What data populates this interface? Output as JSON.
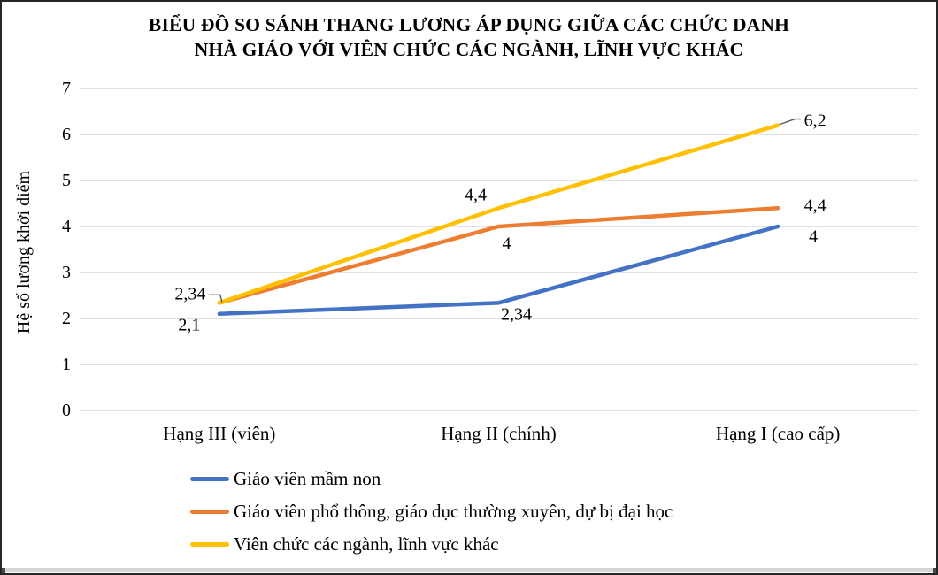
{
  "title": {
    "line1": "BIỂU ĐỒ SO SÁNH THANG LƯƠNG ÁP DỤNG GIỮA CÁC CHỨC DANH",
    "line2": "NHÀ GIÁO VỚI VIÊN CHỨC CÁC NGÀNH, LĨNH VỰC KHÁC"
  },
  "chart_data": {
    "type": "line",
    "title": "BIỂU ĐỒ SO SÁNH THANG LƯƠNG ÁP DỤNG GIỮA CÁC CHỨC DANH NHÀ GIÁO VỚI VIÊN CHỨC CÁC NGÀNH, LĨNH VỰC KHÁC",
    "ylabel": "Hệ số lương khởi điểm",
    "xlabel": "",
    "ylim": [
      0,
      7
    ],
    "yticks": [
      0,
      1,
      2,
      3,
      4,
      5,
      6,
      7
    ],
    "grid": true,
    "legend_position": "bottom-left",
    "categories": [
      "Hạng III (viên)",
      "Hạng II (chính)",
      "Hạng I (cao cấp)"
    ],
    "series": [
      {
        "name": "Giáo viên mầm non",
        "color": "#4472C4",
        "values": [
          2.1,
          2.34,
          4
        ]
      },
      {
        "name": "Giáo viên phổ thông, giáo dục thường xuyên, dự bị đại học",
        "color": "#ED7D31",
        "values": [
          2.34,
          4,
          4.4
        ]
      },
      {
        "name": "Viên chức các ngành, lĩnh vực khác",
        "color": "#FFC000",
        "values": [
          2.34,
          4.4,
          6.2
        ]
      }
    ],
    "point_labels": [
      {
        "series": 2,
        "point": 0,
        "text": "2,34",
        "callout": true
      },
      {
        "series": 0,
        "point": 0,
        "text": "2,1",
        "callout": false
      },
      {
        "series": 2,
        "point": 1,
        "text": "4,4",
        "callout": false
      },
      {
        "series": 1,
        "point": 1,
        "text": "4",
        "callout": false
      },
      {
        "series": 0,
        "point": 1,
        "text": "2,34",
        "callout": false
      },
      {
        "series": 2,
        "point": 2,
        "text": "6,2",
        "callout": true
      },
      {
        "series": 1,
        "point": 2,
        "text": "4,4",
        "callout": false
      },
      {
        "series": 0,
        "point": 2,
        "text": "4",
        "callout": false
      }
    ]
  },
  "colors": {
    "series_blue": "#4472C4",
    "series_orange": "#ED7D31",
    "series_yellow": "#FFC000",
    "gridline": "#D9D9D9",
    "callout": "#595959",
    "text": "#000000"
  }
}
